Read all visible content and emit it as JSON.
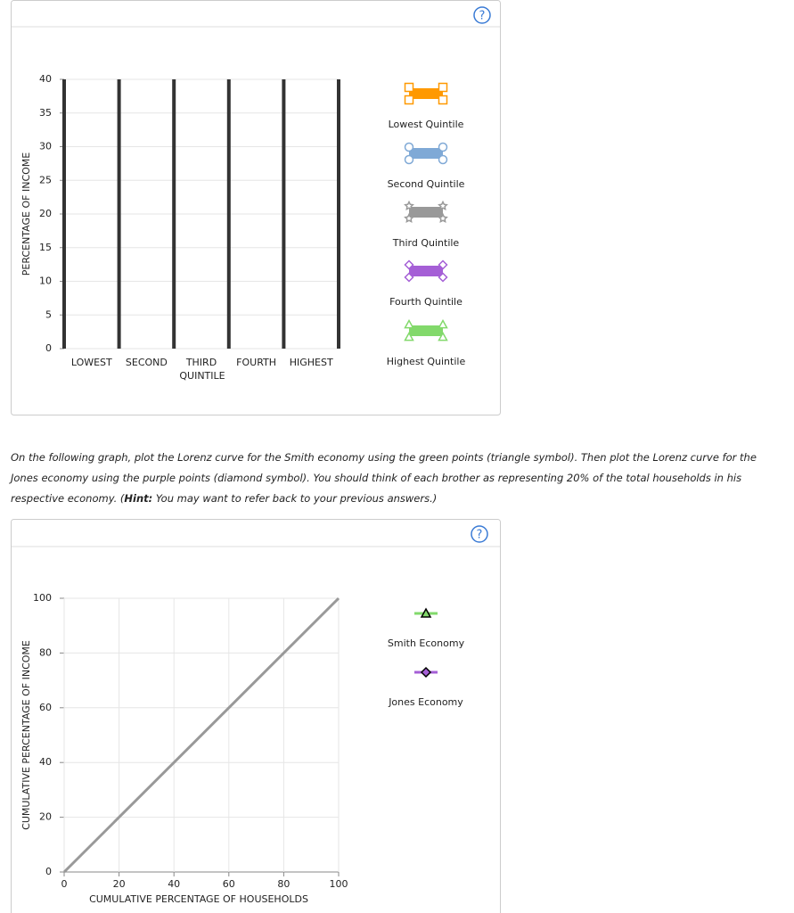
{
  "instructions": {
    "before": "On the following graph, plot the Lorenz curve for the Smith economy using the green points (triangle symbol). Then plot the Lorenz curve for the Jones economy using the purple points (diamond symbol). You should think of each brother as representing 20% of the total households in his respective economy. (",
    "hint": "Hint:",
    "after": " You may want to refer back to your previous answers.)"
  },
  "chart_data": [
    {
      "type": "bar",
      "y_label": "PERCENTAGE OF INCOME",
      "x_label": "QUINTILE",
      "categories": [
        "LOWEST",
        "SECOND",
        "THIRD",
        "FOURTH",
        "HIGHEST"
      ],
      "values": [
        null,
        null,
        null,
        null,
        null
      ],
      "ylim": [
        0,
        40
      ],
      "yticks": [
        0,
        5,
        10,
        15,
        20,
        25,
        30,
        35,
        40
      ],
      "grid": true,
      "palette": [
        {
          "name": "Lowest Quintile",
          "color": "#ff9900",
          "symbol": "square"
        },
        {
          "name": "Second Quintile",
          "color": "#7fa9d6",
          "symbol": "circle"
        },
        {
          "name": "Third Quintile",
          "color": "#999999",
          "symbol": "star"
        },
        {
          "name": "Fourth Quintile",
          "color": "#a55fd6",
          "symbol": "diamond"
        },
        {
          "name": "Highest Quintile",
          "color": "#82d96b",
          "symbol": "triangle"
        }
      ]
    },
    {
      "type": "line",
      "y_label": "CUMULATIVE PERCENTAGE OF INCOME",
      "x_label": "CUMULATIVE PERCENTAGE OF HOUSEHOLDS",
      "x": [
        0,
        100
      ],
      "series": [
        {
          "color": "#999999",
          "values": [
            0,
            100
          ]
        }
      ],
      "xlim": [
        0,
        100
      ],
      "ylim": [
        0,
        100
      ],
      "xticks": [
        0,
        20,
        40,
        60,
        80,
        100
      ],
      "yticks": [
        0,
        20,
        40,
        60,
        80,
        100
      ],
      "grid": true,
      "palette": [
        {
          "name": "Smith Economy",
          "color": "#82d96b",
          "symbol": "triangle"
        },
        {
          "name": "Jones Economy",
          "color": "#a55fd6",
          "symbol": "diamond"
        }
      ]
    }
  ]
}
